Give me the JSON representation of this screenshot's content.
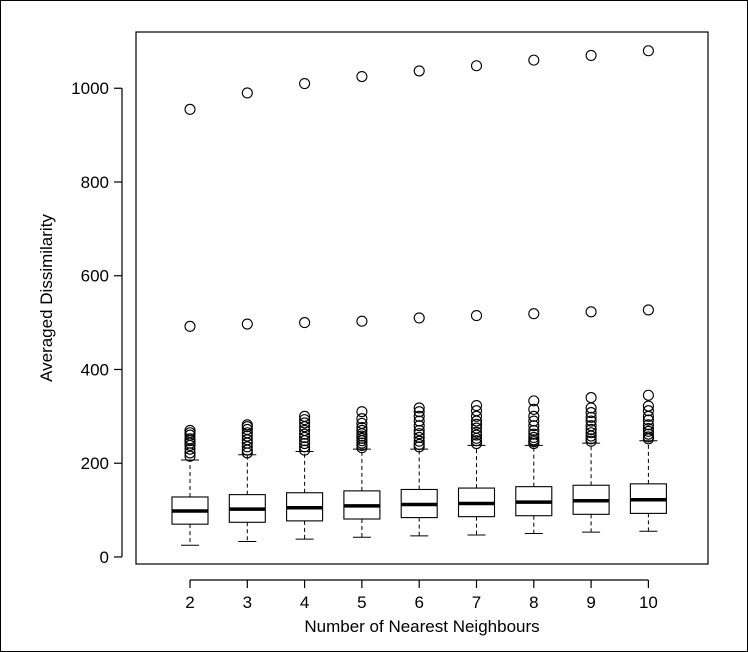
{
  "chart_data": {
    "type": "boxplot",
    "title": "",
    "xlabel": "Number of Nearest Neighbours",
    "ylabel": "Averaged Dissimilarity",
    "ylim": [
      -15,
      1120
    ],
    "yticks": [
      0,
      200,
      400,
      600,
      800,
      1000
    ],
    "grid": false,
    "legend": "none",
    "categories": [
      "2",
      "3",
      "4",
      "5",
      "6",
      "7",
      "8",
      "9",
      "10"
    ],
    "boxes": [
      {
        "x": "2",
        "whisker_low": 25,
        "q1": 70,
        "median": 98,
        "q3": 128,
        "whisker_high": 207,
        "outliers": [
          215,
          222,
          230,
          238,
          243,
          248,
          252,
          260,
          265,
          270,
          492,
          955
        ]
      },
      {
        "x": "3",
        "whisker_low": 33,
        "q1": 74,
        "median": 102,
        "q3": 133,
        "whisker_high": 218,
        "outliers": [
          222,
          228,
          235,
          243,
          250,
          258,
          265,
          272,
          278,
          282,
          497,
          990
        ]
      },
      {
        "x": "4",
        "whisker_low": 38,
        "q1": 77,
        "median": 105,
        "q3": 137,
        "whisker_high": 225,
        "outliers": [
          228,
          235,
          242,
          248,
          255,
          262,
          270,
          278,
          286,
          293,
          300,
          500,
          1010
        ]
      },
      {
        "x": "5",
        "whisker_low": 42,
        "q1": 81,
        "median": 109,
        "q3": 141,
        "whisker_high": 230,
        "outliers": [
          233,
          238,
          243,
          248,
          253,
          258,
          263,
          270,
          276,
          285,
          295,
          310,
          503,
          1025
        ]
      },
      {
        "x": "6",
        "whisker_low": 45,
        "q1": 84,
        "median": 112,
        "q3": 144,
        "whisker_high": 230,
        "outliers": [
          235,
          240,
          247,
          255,
          263,
          270,
          280,
          290,
          300,
          310,
          318,
          510,
          1037
        ]
      },
      {
        "x": "7",
        "whisker_low": 47,
        "q1": 86,
        "median": 114,
        "q3": 147,
        "whisker_high": 238,
        "outliers": [
          242,
          248,
          253,
          260,
          266,
          275,
          283,
          290,
          300,
          312,
          323,
          515,
          1048
        ]
      },
      {
        "x": "8",
        "whisker_low": 50,
        "q1": 88,
        "median": 117,
        "q3": 150,
        "whisker_high": 238,
        "outliers": [
          242,
          246,
          250,
          255,
          262,
          270,
          280,
          290,
          300,
          315,
          333,
          519,
          1060
        ]
      },
      {
        "x": "9",
        "whisker_low": 53,
        "q1": 91,
        "median": 120,
        "q3": 153,
        "whisker_high": 243,
        "outliers": [
          247,
          252,
          258,
          265,
          272,
          280,
          290,
          298,
          308,
          318,
          340,
          523,
          1070
        ]
      },
      {
        "x": "10",
        "whisker_low": 55,
        "q1": 93,
        "median": 122,
        "q3": 156,
        "whisker_high": 248,
        "outliers": [
          252,
          256,
          262,
          268,
          274,
          282,
          292,
          300,
          312,
          322,
          345,
          527,
          1080
        ]
      }
    ]
  }
}
